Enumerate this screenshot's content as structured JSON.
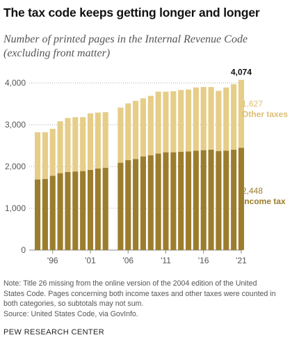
{
  "title": "The tax code keeps getting longer and longer",
  "subtitle_lines": [
    "Number of printed pages in the Internal Revenue Code",
    "(excluding front matter)"
  ],
  "note_lines": [
    "Note: Title 26 missing from the online version of the 2004 edition of the United",
    "States Code. Pages concerning both income taxes and other taxes were counted in",
    "both categories, so subtotals may not sum."
  ],
  "source": "Source: United States Code, via GovInfo.",
  "footer": "PEW RESEARCH CENTER",
  "colors": {
    "income": "#9c7d2d",
    "other": "#e6cd88",
    "other_label": "#ddbf73"
  },
  "chart_data": {
    "type": "bar",
    "stacked": true,
    "x": [
      1994,
      1995,
      1996,
      1997,
      1998,
      1999,
      2000,
      2001,
      2002,
      2003,
      2004,
      2005,
      2006,
      2007,
      2008,
      2009,
      2010,
      2011,
      2012,
      2013,
      2014,
      2015,
      2016,
      2017,
      2018,
      2019,
      2020,
      2021
    ],
    "x_tick_labels": [
      {
        "x": 1996,
        "label": "'96"
      },
      {
        "x": 2001,
        "label": "'01"
      },
      {
        "x": 2006,
        "label": "'06"
      },
      {
        "x": 2011,
        "label": "'11"
      },
      {
        "x": 2016,
        "label": "'16"
      },
      {
        "x": 2021,
        "label": "'21"
      }
    ],
    "y_ticks": [
      0,
      1000,
      2000,
      3000,
      4000
    ],
    "y_tick_labels": [
      "0",
      "1,000",
      "2,000",
      "3,000",
      "4,000"
    ],
    "ylim": [
      0,
      4100
    ],
    "grid": true,
    "series": [
      {
        "key": "income",
        "values": [
          1690,
          1700,
          1780,
          1840,
          1870,
          1880,
          1890,
          1920,
          1950,
          1970,
          null,
          2090,
          2150,
          2180,
          2240,
          2270,
          2310,
          2340,
          2340,
          2350,
          2360,
          2380,
          2390,
          2400,
          2370,
          2380,
          2400,
          2448
        ]
      },
      {
        "key": "other",
        "values": [
          1130,
          1120,
          1120,
          1240,
          1290,
          1300,
          1290,
          1350,
          1340,
          1330,
          null,
          1320,
          1360,
          1390,
          1390,
          1420,
          1480,
          1450,
          1460,
          1480,
          1480,
          1510,
          1510,
          1500,
          1440,
          1510,
          1570,
          1627
        ]
      }
    ],
    "totals": [
      2820,
      2820,
      2900,
      3080,
      3160,
      3180,
      3180,
      3270,
      3290,
      3300,
      null,
      3410,
      3510,
      3570,
      3630,
      3690,
      3790,
      3790,
      3800,
      3830,
      3840,
      3890,
      3900,
      3900,
      3810,
      3890,
      3970,
      4074
    ],
    "annotations": {
      "total_last": "4,074",
      "other_value": "1,627",
      "other_label": "Other taxes",
      "income_value": "2,448",
      "income_label": "Income tax"
    }
  }
}
